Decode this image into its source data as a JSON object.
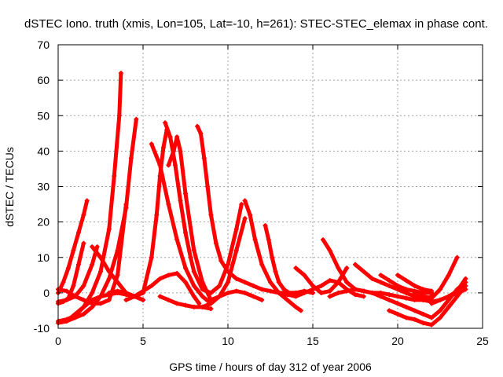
{
  "chart_data": {
    "type": "line",
    "title": "dSTEC Iono. truth (xmis, Lon=105, Lat=-10, h=261): STEC-STEC_elemax in phase cont.",
    "xlabel": "GPS time / hours of day 312 of year 2006",
    "ylabel": "dSTEC  / TECUs",
    "xlim": [
      0,
      25
    ],
    "ylim": [
      -10,
      70
    ],
    "xticks": [
      0,
      5,
      10,
      15,
      20,
      25
    ],
    "yticks": [
      -10,
      0,
      10,
      20,
      30,
      40,
      50,
      60,
      70
    ],
    "grid": true,
    "legend": "none",
    "marker": "plus",
    "color": "#ff0000",
    "series": [
      {
        "x": [
          0.0,
          0.3,
          0.6,
          0.9,
          1.2,
          1.5,
          1.7
        ],
        "y": [
          0,
          3,
          7,
          12,
          17,
          22,
          26
        ]
      },
      {
        "x": [
          0.0,
          0.3,
          0.6,
          0.9,
          1.2,
          1.5
        ],
        "y": [
          -3,
          -2.5,
          -1.5,
          2,
          8,
          14
        ]
      },
      {
        "x": [
          0.0,
          0.5,
          1.0,
          1.5,
          2.0,
          2.5,
          3.0,
          3.3,
          3.6,
          3.7
        ],
        "y": [
          -8,
          -7.5,
          -6.5,
          -4,
          0,
          6,
          18,
          33,
          50,
          62
        ]
      },
      {
        "x": [
          0.0,
          0.5,
          1.0,
          1.5,
          2.0,
          2.3
        ],
        "y": [
          -2.5,
          -2,
          -1,
          2,
          8,
          13
        ]
      },
      {
        "x": [
          0.0,
          0.5,
          1.0,
          1.5,
          2.0,
          2.5,
          3.0,
          3.5,
          4.0,
          4.3,
          4.6
        ],
        "y": [
          -8.5,
          -8,
          -7,
          -6,
          -4,
          -1,
          4,
          12,
          24,
          38,
          49
        ]
      },
      {
        "x": [
          0.0,
          0.5,
          1.0,
          1.5,
          2.0,
          2.5,
          3.0,
          3.5,
          4.0
        ],
        "y": [
          1,
          0.5,
          -1,
          -2,
          -3,
          -3,
          -2,
          5,
          25
        ]
      },
      {
        "x": [
          0.5,
          1.0,
          1.5,
          2.0,
          2.5,
          3.0,
          3.5,
          4.0,
          4.5,
          5.0
        ],
        "y": [
          -8,
          -6,
          -4,
          -2,
          -1,
          -0.5,
          0,
          -0.5,
          -1,
          -2
        ]
      },
      {
        "x": [
          2.0,
          2.5,
          3.0,
          3.5,
          4.0,
          4.5,
          5.0
        ],
        "y": [
          13,
          10,
          6,
          3,
          0,
          -1,
          -2
        ]
      },
      {
        "x": [
          4.0,
          4.5,
          5.0,
          5.5,
          6.0,
          6.5,
          7.0,
          7.5,
          8.0,
          8.3
        ],
        "y": [
          -2,
          -1,
          0.5,
          2,
          4,
          5,
          5.5,
          3,
          -1,
          -3
        ]
      },
      {
        "x": [
          3.0,
          3.5,
          4.0,
          4.5,
          5.0,
          5.5,
          5.8,
          6.0,
          6.2,
          6.4
        ],
        "y": [
          0,
          0.5,
          0,
          -1,
          0,
          10,
          22,
          33,
          41,
          46
        ]
      },
      {
        "x": [
          5.5,
          6.0,
          6.5,
          7.0,
          7.5,
          8.0,
          8.5,
          9.0
        ],
        "y": [
          42,
          36,
          25,
          15,
          7,
          2,
          -1,
          -3
        ]
      },
      {
        "x": [
          6.3,
          6.6,
          6.9,
          7.2,
          7.5,
          7.8,
          8.0,
          8.5,
          9.0,
          9.5,
          10.0,
          10.5,
          10.8
        ],
        "y": [
          48,
          44,
          36,
          26,
          17,
          10,
          6,
          1,
          0,
          2,
          8,
          18,
          25
        ]
      },
      {
        "x": [
          6.5,
          6.8,
          7.0,
          7.2,
          7.5,
          8.0,
          8.5,
          9.0,
          9.5,
          10.0,
          10.5,
          11.0
        ],
        "y": [
          36,
          40,
          44,
          40,
          28,
          12,
          3,
          -2,
          -1,
          3,
          12,
          21
        ]
      },
      {
        "x": [
          6.0,
          6.5,
          7.0,
          7.5,
          8.0,
          8.5,
          9.0
        ],
        "y": [
          -1,
          -2,
          -3,
          -3.5,
          -4,
          -4,
          -4.5
        ]
      },
      {
        "x": [
          8.2,
          8.4,
          8.6,
          8.8,
          9.0,
          9.3,
          9.6,
          10.0,
          10.5,
          11.0,
          11.5,
          12.0,
          12.5,
          13.0,
          13.5,
          14.0
        ],
        "y": [
          47,
          45,
          38,
          30,
          22,
          14,
          9,
          6,
          4,
          3,
          2,
          1,
          0.5,
          0,
          0,
          0
        ]
      },
      {
        "x": [
          11.0,
          11.3,
          11.6,
          12.0,
          12.5,
          13.0,
          13.5,
          14.0,
          14.3
        ],
        "y": [
          26,
          22,
          15,
          8,
          3,
          0,
          -2,
          -4,
          -5
        ]
      },
      {
        "x": [
          12.2,
          12.4,
          12.6,
          12.8,
          13.0,
          13.3,
          13.6,
          14.0,
          14.5,
          15.0
        ],
        "y": [
          19,
          15,
          10,
          6,
          3,
          1,
          0,
          0,
          0.5,
          0
        ]
      },
      {
        "x": [
          8.5,
          9.0,
          9.5,
          10.0,
          10.5,
          11.0,
          11.5,
          12.0
        ],
        "y": [
          -4,
          -3,
          -1,
          0,
          0.5,
          0,
          -1,
          -2
        ]
      },
      {
        "x": [
          13.0,
          13.5,
          14.0,
          14.5,
          15.0,
          15.5,
          16.0,
          16.5,
          17.0,
          17.5,
          18.0
        ],
        "y": [
          0,
          -0.5,
          -1,
          0,
          1,
          2,
          3.5,
          3,
          1,
          -0.5,
          -1
        ]
      },
      {
        "x": [
          14.0,
          14.5,
          15.0,
          15.5,
          16.0,
          16.5,
          17.0
        ],
        "y": [
          7,
          5,
          2,
          0,
          0.5,
          3,
          7
        ]
      },
      {
        "x": [
          15.6,
          16.0,
          16.5,
          17.0,
          17.5,
          18.0,
          18.5,
          19.0,
          19.5,
          20.0,
          20.5,
          21.0,
          21.5,
          22.0
        ],
        "y": [
          15,
          12,
          7,
          3,
          1,
          0.5,
          0,
          0,
          -0.5,
          -1,
          -1.5,
          -2,
          -2,
          -1
        ]
      },
      {
        "x": [
          16.0,
          16.5,
          17.0,
          17.5,
          18.0,
          18.5,
          19.0,
          19.5,
          20.0,
          20.5,
          21.0,
          21.5,
          22.0,
          22.5,
          23.0,
          23.5,
          24.0
        ],
        "y": [
          -1,
          0,
          0.5,
          1,
          0.5,
          0,
          -1,
          -2,
          -3,
          -4,
          -5,
          -6,
          -7,
          -5,
          -2,
          1,
          3
        ]
      },
      {
        "x": [
          17.5,
          18.0,
          18.5,
          19.0,
          19.5,
          20.0,
          20.5,
          21.0,
          21.5,
          22.0,
          22.5,
          23.0,
          23.5,
          24.0
        ],
        "y": [
          8,
          6,
          4,
          3,
          2,
          1,
          0,
          -1,
          -2,
          -2.5,
          -2,
          -1,
          0,
          1
        ]
      },
      {
        "x": [
          19.0,
          19.5,
          20.0,
          20.5,
          21.0,
          21.5,
          22.0
        ],
        "y": [
          5,
          3.5,
          2,
          1,
          0.5,
          0,
          0
        ]
      },
      {
        "x": [
          20.0,
          20.5,
          21.0,
          21.5,
          22.0
        ],
        "y": [
          5,
          3.5,
          2,
          1,
          0.5
        ]
      },
      {
        "x": [
          21.0,
          21.5,
          22.0,
          22.5,
          23.0,
          23.5
        ],
        "y": [
          0,
          -1,
          -1.5,
          1,
          5,
          10
        ]
      },
      {
        "x": [
          19.5,
          20.0,
          20.5,
          21.0,
          21.5,
          22.0,
          22.5,
          23.0,
          23.5,
          24.0
        ],
        "y": [
          -5,
          -6,
          -7,
          -7.5,
          -8.5,
          -9,
          -7,
          -4,
          -1,
          2
        ]
      },
      {
        "x": [
          22.0,
          22.5,
          23.0,
          23.5,
          24.0
        ],
        "y": [
          -3,
          -2,
          -1,
          0.5,
          4
        ]
      }
    ]
  }
}
